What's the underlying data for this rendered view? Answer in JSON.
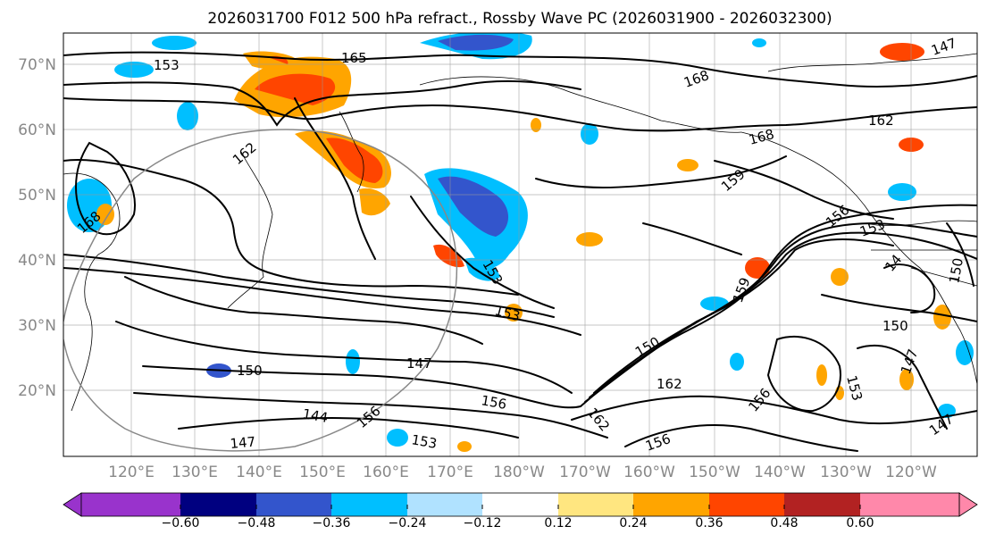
{
  "title": "2026031700 F012 500 hPa refract., Rossby Wave PC (2026031900 - 2026032300)",
  "map": {
    "lat_labels": [
      "70°N",
      "60°N",
      "50°N",
      "40°N",
      "30°N",
      "20°N"
    ],
    "lon_labels": [
      "120°E",
      "130°E",
      "140°E",
      "150°E",
      "160°E",
      "170°E",
      "180°W",
      "170°W",
      "160°W",
      "150°W",
      "140°W",
      "130°W",
      "120°W"
    ],
    "contour_labels": [
      "165",
      "168",
      "162",
      "168",
      "168",
      "159",
      "156",
      "153",
      "150",
      "147",
      "162",
      "153",
      "150",
      "153",
      "147",
      "150",
      "144",
      "147",
      "156",
      "156",
      "153",
      "156",
      "159",
      "162",
      "162",
      "156",
      "153",
      "147",
      "147",
      "150",
      "14",
      "153"
    ]
  },
  "colorbar": {
    "tick_labels": [
      "−0.60",
      "−0.48",
      "−0.36",
      "−0.24",
      "−0.12",
      "0.12",
      "0.24",
      "0.36",
      "0.48",
      "0.60"
    ],
    "colors": [
      "#9933cc",
      "#000080",
      "#3355cc",
      "#00bfff",
      "#b0e2ff",
      "#ffffff",
      "#ffe680",
      "#ffa500",
      "#ff4500",
      "#b22222",
      "#ff88aa",
      "#ff88aa"
    ]
  }
}
